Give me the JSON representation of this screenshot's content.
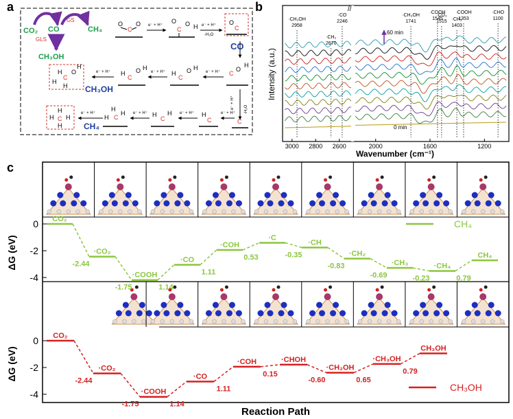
{
  "panel_labels": {
    "a": "a",
    "b": "b",
    "c": "c"
  },
  "panel_a": {
    "legend": {
      "co2": "CO₂",
      "co": "CO",
      "ch4": "CH₄",
      "gs": "GS",
      "gls": "GLS",
      "ch3oh": "CH₃OH"
    },
    "step_label": "e⁻ + H⁺",
    "h2o": "-H₂O",
    "co_label": "CO",
    "ch3oh_label": "CH₃OH",
    "ch4_label": "CH₄",
    "colors": {
      "co2": "#1aa04a",
      "ch4": "#1aa04a",
      "arrow": "#7030a0",
      "ch3oh": "#1aa04a",
      "product": "#1f3fa0",
      "carbon": "#d0342c"
    }
  },
  "panel_b": {
    "ylabel": "Intensity (a.u.)",
    "xlabel": "Wavenumber (cm⁻¹)",
    "x_ticks": [
      "3000",
      "2800",
      "2600",
      "2000",
      "1600",
      "1200"
    ],
    "time_top": "60 min",
    "time_bottom": "0 min",
    "peaks": [
      {
        "label": "·CH₃OH",
        "value": "2958"
      },
      {
        "label": "·CH₂",
        "value": "2670"
      },
      {
        "label": "·CO",
        "value": "2246"
      },
      {
        "label": "·CH₃OH",
        "value": "1741"
      },
      {
        "label": "·COOH",
        "value": "1545"
      },
      {
        "label": "·CO₃",
        "value": "1515"
      },
      {
        "label": "·CH₃",
        "value": "1403"
      },
      {
        "label": "·COOH",
        "value": "1353"
      },
      {
        "label": "·CHO",
        "value": "1100"
      }
    ],
    "series_colors": [
      "#36a2b8",
      "#222222",
      "#d0342c",
      "#2f7fd0",
      "#1f9a3a",
      "#c06030",
      "#1aa6a6",
      "#8a8a20",
      "#7a4a9a",
      "#4a8a4a",
      "#b89a10"
    ]
  },
  "panel_c": {
    "xlabel": "Reaction Path",
    "ylabel_top": "ΔG (eV)",
    "ylabel_bottom": "ΔG (eV)",
    "y_ticks": [
      "0",
      "-2",
      "-4"
    ],
    "legend_top": "CH₄",
    "legend_bottom": "CH₃OH",
    "colors": {
      "ch4_path": "#8cc63f",
      "ch3oh_path": "#d42020"
    }
  },
  "chart_data": [
    {
      "type": "line",
      "series": [
        {
          "name": "CH₄",
          "values": [
            0,
            -2.44,
            -1.75,
            1.14,
            1.11,
            0.53,
            -0.35,
            -0.83,
            -0.69,
            -0.23,
            0.79
          ]
        }
      ],
      "states": [
        "CO₂",
        "·CO₂",
        "·COOH",
        "·CO",
        "·COH",
        "·C",
        "·CH",
        "·CH₂",
        "·CH₃",
        "·CH₄",
        "CH₄"
      ],
      "step_labels": [
        "-2.44",
        "-1.75",
        "1.14",
        "1.11",
        "0.53",
        "-0.35",
        "-0.83",
        "-0.69",
        "-0.23",
        "0.79"
      ],
      "levels": [
        0,
        -2.44,
        -4.19,
        -3.05,
        -1.94,
        -1.41,
        -1.76,
        -2.59,
        -3.28,
        -3.51,
        -2.72
      ],
      "ylabel": "ΔG (eV)",
      "ylim": [
        -5,
        0.8
      ]
    },
    {
      "type": "line",
      "series": [
        {
          "name": "CH₃OH",
          "values": [
            0,
            -2.44,
            -1.75,
            1.14,
            1.11,
            0.15,
            -0.6,
            0.65,
            0.79
          ]
        }
      ],
      "states": [
        "CO₂",
        "·CO₂",
        "·COOH",
        "·CO",
        "·COH",
        "·CHOH",
        "·CH₂OH",
        "·CH₃OH",
        "CH₃OH"
      ],
      "step_labels": [
        "-2.44",
        "-1.75",
        "1.14",
        "1.11",
        "0.15",
        "-0.60",
        "0.65",
        "0.79"
      ],
      "levels": [
        0,
        -2.44,
        -4.19,
        -3.05,
        -1.94,
        -1.79,
        -2.39,
        -1.74,
        -0.95
      ],
      "xlabel": "Reaction Path",
      "ylabel": "ΔG (eV)",
      "ylim": [
        -5,
        0.8
      ]
    }
  ]
}
